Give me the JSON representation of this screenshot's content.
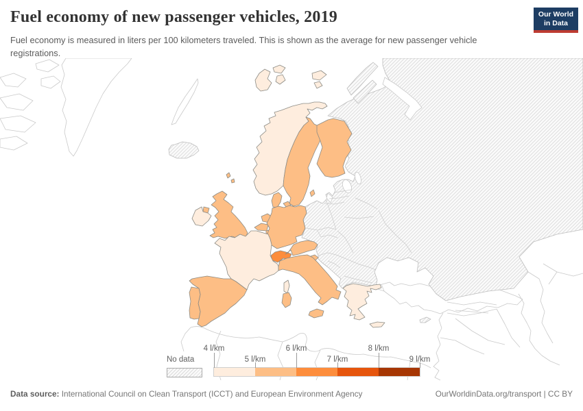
{
  "header": {
    "title": "Fuel economy of new passenger vehicles, 2019",
    "subtitle": "Fuel economy is measured in liters per 100 kilometers traveled. This is shown as the average for new passenger vehicle registrations.",
    "logo": {
      "line1": "Our World",
      "line2": "in Data",
      "bg_color": "#1d3d63",
      "accent_color": "#be3c32"
    }
  },
  "legend": {
    "no_data_label": "No data",
    "ticks": [
      "4 l/km",
      "5 l/km",
      "6 l/km",
      "7 l/km",
      "8 l/km",
      "9 l/km"
    ],
    "bin_colors": [
      "#feedde",
      "#fdbe85",
      "#fd8d3c",
      "#e6550d",
      "#a63603"
    ],
    "no_data_pattern": {
      "bg": "#fbfbfb",
      "line": "#dedede"
    }
  },
  "chart_data": {
    "type": "choropleth",
    "title": "Fuel economy of new passenger vehicles, 2019",
    "unit": "l/km",
    "bins": [
      "4-5",
      "5-6",
      "6-7",
      "7-8",
      "8-9"
    ],
    "legend_position": "bottom",
    "countries": [
      {
        "id": "norway",
        "name": "Norway",
        "bin_index": 0
      },
      {
        "id": "svalbard",
        "name": "Svalbard (Norway)",
        "bin_index": 0
      },
      {
        "id": "ireland",
        "name": "Ireland",
        "bin_index": 0
      },
      {
        "id": "france",
        "name": "France",
        "bin_index": 0
      },
      {
        "id": "corsica",
        "name": "Corsica (France)",
        "bin_index": 0
      },
      {
        "id": "greece",
        "name": "Greece",
        "bin_index": 0
      },
      {
        "id": "crete",
        "name": "Crete (Greece)",
        "bin_index": 0
      },
      {
        "id": "uk",
        "name": "United Kingdom",
        "bin_index": 1
      },
      {
        "id": "northern-ireland",
        "name": "Northern Ireland (UK)",
        "bin_index": 1
      },
      {
        "id": "shetland",
        "name": "Shetland (UK)",
        "bin_index": 1
      },
      {
        "id": "sweden",
        "name": "Sweden",
        "bin_index": 1
      },
      {
        "id": "gotland",
        "name": "Gotland (Sweden)",
        "bin_index": 1
      },
      {
        "id": "finland",
        "name": "Finland",
        "bin_index": 1
      },
      {
        "id": "denmark",
        "name": "Denmark",
        "bin_index": 1
      },
      {
        "id": "netherlands",
        "name": "Netherlands",
        "bin_index": 1
      },
      {
        "id": "belgium",
        "name": "Belgium",
        "bin_index": 1
      },
      {
        "id": "luxembourg",
        "name": "Luxembourg",
        "bin_index": 1
      },
      {
        "id": "germany",
        "name": "Germany",
        "bin_index": 1
      },
      {
        "id": "austria",
        "name": "Austria",
        "bin_index": 1
      },
      {
        "id": "slovenia",
        "name": "Slovenia",
        "bin_index": 1
      },
      {
        "id": "italy",
        "name": "Italy",
        "bin_index": 1
      },
      {
        "id": "sicily",
        "name": "Sicily (Italy)",
        "bin_index": 1
      },
      {
        "id": "sardinia",
        "name": "Sardinia (Italy)",
        "bin_index": 1
      },
      {
        "id": "spain",
        "name": "Spain",
        "bin_index": 1
      },
      {
        "id": "portugal",
        "name": "Portugal",
        "bin_index": 1
      },
      {
        "id": "switzerland",
        "name": "Switzerland",
        "bin_index": 2
      },
      {
        "id": "iceland",
        "name": "Iceland",
        "bin_index": null
      },
      {
        "id": "eastern-europe-russia",
        "name": "Eastern Europe / Russia",
        "bin_index": null
      },
      {
        "id": "novaya-zemlya",
        "name": "Novaya Zemlya (Russia)",
        "bin_index": null
      },
      {
        "id": "cyprus",
        "name": "Cyprus",
        "bin_index": null
      }
    ]
  },
  "footer": {
    "source_label": "Data source:",
    "source_text": " International Council on Clean Transport (ICCT) and European Environment Agency",
    "attribution": "OurWorldinData.org/transport | CC BY"
  }
}
